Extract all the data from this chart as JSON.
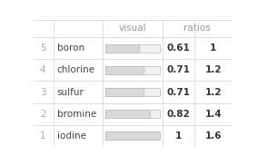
{
  "rows": [
    {
      "rank": 5,
      "element": "boron",
      "visual": 0.61,
      "ratio": 1.0
    },
    {
      "rank": 4,
      "element": "chlorine",
      "visual": 0.71,
      "ratio": 1.2
    },
    {
      "rank": 3,
      "element": "sulfur",
      "visual": 0.71,
      "ratio": 1.2
    },
    {
      "rank": 2,
      "element": "bromine",
      "visual": 0.82,
      "ratio": 1.4
    },
    {
      "rank": 1,
      "element": "iodine",
      "visual": 1.0,
      "ratio": 1.6
    }
  ],
  "col_headers": [
    "visual",
    "ratios"
  ],
  "bar_filled_color": "#d9d9d9",
  "bar_outline_color": "#bbbbbb",
  "bar_empty_color": "#f0f0f0",
  "header_color": "#999999",
  "rank_color": "#aaaaaa",
  "element_color": "#444444",
  "value_color": "#333333",
  "bg_color": "#ffffff",
  "line_color": "#d0d0d0",
  "font_size": 7.5,
  "header_font_size": 7.5
}
